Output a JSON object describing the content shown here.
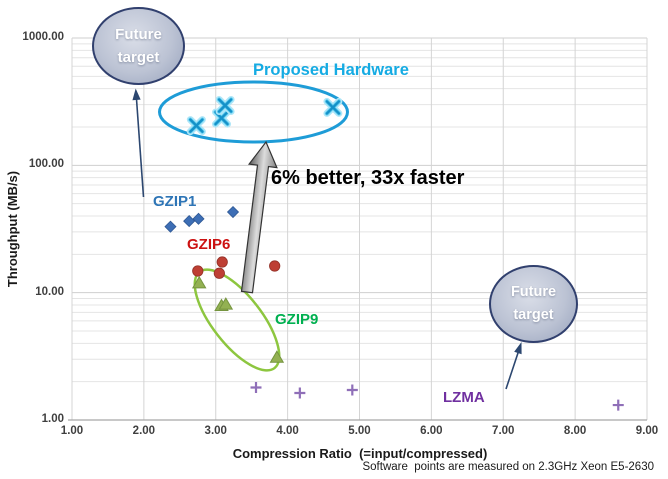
{
  "chart_data": {
    "type": "scatter",
    "title": "",
    "xlabel": "Compression Ratio  (=input/compressed)",
    "ylabel": "Throughput (MB/s)",
    "footnote": "Software  points are measured on 2.3GHz Xeon E5-2630",
    "x_axis": {
      "min": 1,
      "max": 9,
      "scale": "linear",
      "tick_values": [
        1,
        2,
        3,
        4,
        5,
        6,
        7,
        8,
        9
      ],
      "tick_labels": [
        "1.00",
        "2.00",
        "3.00",
        "4.00",
        "5.00",
        "6.00",
        "7.00",
        "8.00",
        "9.00"
      ]
    },
    "y_axis": {
      "min": 1,
      "max": 1000,
      "scale": "log",
      "tick_values": [
        1,
        10,
        100,
        1000
      ],
      "tick_labels": [
        "1.00",
        "10.00",
        "100.00",
        "1000.00"
      ]
    },
    "grid": "on",
    "legend": "none",
    "series": [
      {
        "name": "GZIP1",
        "marker": "diamond",
        "color": "#3d6eb5",
        "edge": "#2f5894",
        "label_color": "#2e75b6",
        "points": [
          [
            2.37,
            33
          ],
          [
            2.63,
            36.5
          ],
          [
            2.76,
            38
          ],
          [
            3.24,
            43
          ]
        ]
      },
      {
        "name": "GZIP6",
        "marker": "circle",
        "color": "#be3f34",
        "edge": "#943128",
        "label_color": "#cc1111",
        "points": [
          [
            2.75,
            14.8
          ],
          [
            3.05,
            14.2
          ],
          [
            3.09,
            17.4
          ],
          [
            3.82,
            16.2
          ]
        ]
      },
      {
        "name": "GZIP9",
        "marker": "triangle",
        "color": "#93b152",
        "edge": "#75943f",
        "label_color": "#00b050",
        "points": [
          [
            2.77,
            11.9
          ],
          [
            3.08,
            7.9
          ],
          [
            3.14,
            8.1
          ],
          [
            3.85,
            3.1
          ]
        ]
      },
      {
        "name": "LZMA",
        "marker": "plus",
        "color": "#8f6fb8",
        "edge": "#7030a0",
        "label_color": "#7030a0",
        "points": [
          [
            3.56,
            1.8
          ],
          [
            4.17,
            1.63
          ],
          [
            4.9,
            1.72
          ],
          [
            8.6,
            1.31
          ]
        ]
      },
      {
        "name": "Proposed Hardware",
        "marker": "x-glow",
        "color": "#1591c8",
        "glow": "#aee6f8",
        "mid": "#5fcdef",
        "label_color": "#15abe3",
        "points": [
          [
            2.73,
            205
          ],
          [
            3.08,
            235
          ],
          [
            3.13,
            295
          ],
          [
            4.63,
            285
          ]
        ]
      }
    ]
  },
  "annotations": {
    "speedup_label": "6% better, 33x faster",
    "future_target": {
      "line1": "Future",
      "line2": "target"
    },
    "colors": {
      "highlight_ellipse": "#1e9cd7",
      "gzip9_ellipse": "#8dc63f",
      "bubble_border": "#31406e",
      "thin_arrow": "#2c4770"
    }
  }
}
